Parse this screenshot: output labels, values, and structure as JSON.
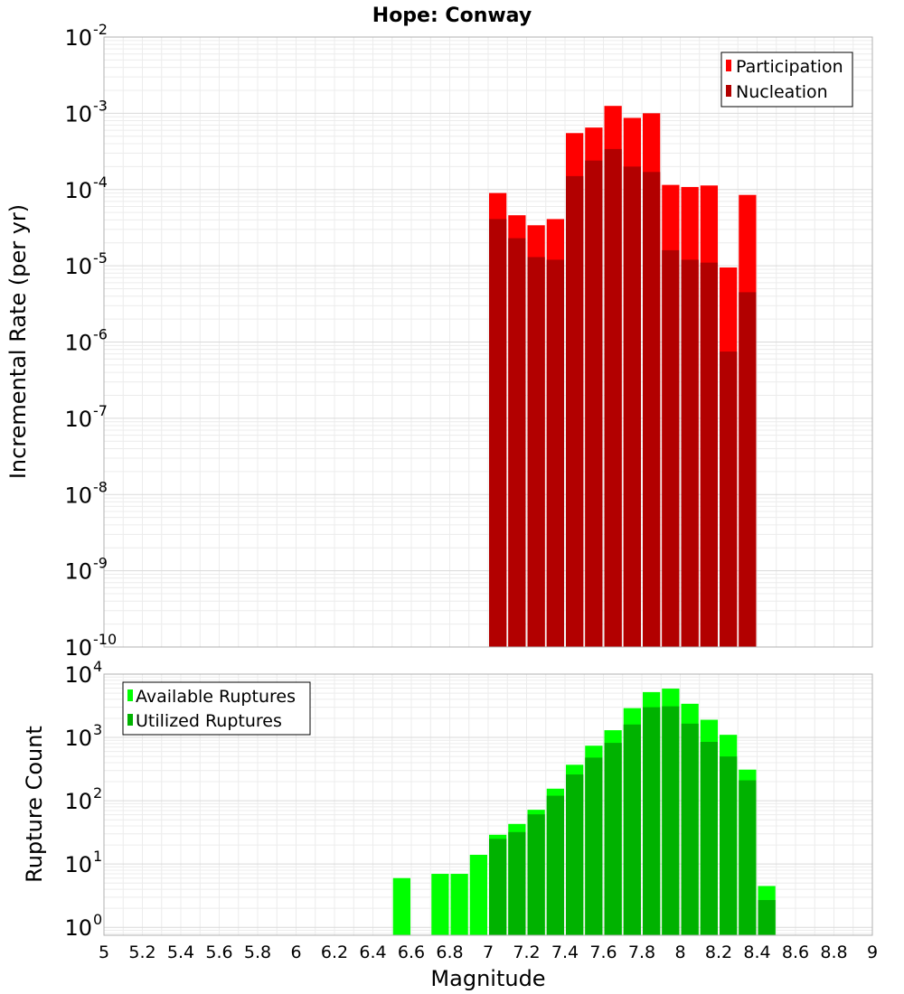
{
  "title": "Hope: Conway",
  "chart_data": [
    {
      "type": "bar",
      "title": "Hope: Conway",
      "xlabel": "Magnitude",
      "ylabel": "Incremental Rate (per yr)",
      "yscale": "log",
      "xlim": [
        5,
        9
      ],
      "ylim": [
        1e-10,
        0.01
      ],
      "grid": true,
      "legend_position": "top-right",
      "bin_width": 0.1,
      "y_ticks": [
        {
          "base": "10",
          "exp": "-10",
          "value": 1e-10
        },
        {
          "base": "10",
          "exp": "-9",
          "value": 1e-09
        },
        {
          "base": "10",
          "exp": "-8",
          "value": 1e-08
        },
        {
          "base": "10",
          "exp": "-7",
          "value": 1e-07
        },
        {
          "base": "10",
          "exp": "-6",
          "value": 1e-06
        },
        {
          "base": "10",
          "exp": "-5",
          "value": 1e-05
        },
        {
          "base": "10",
          "exp": "-4",
          "value": 0.0001
        },
        {
          "base": "10",
          "exp": "-3",
          "value": 0.001
        },
        {
          "base": "10",
          "exp": "-2",
          "value": 0.01
        }
      ],
      "x": [
        7.05,
        7.15,
        7.25,
        7.35,
        7.45,
        7.55,
        7.65,
        7.75,
        7.85,
        7.95,
        8.05,
        8.15,
        8.25,
        8.35
      ],
      "series": [
        {
          "name": "Participation",
          "color": "#ff0000",
          "values": [
            9e-05,
            4.6e-05,
            3.4e-05,
            4.1e-05,
            0.00055,
            0.00065,
            0.00125,
            0.00087,
            0.001,
            0.000115,
            0.000108,
            0.000113,
            9.5e-06,
            8.5e-05
          ]
        },
        {
          "name": "Nucleation",
          "color": "#b20000",
          "values": [
            4.1e-05,
            2.3e-05,
            1.3e-05,
            1.2e-05,
            0.00015,
            0.00024,
            0.00034,
            0.0002,
            0.00017,
            1.6e-05,
            1.2e-05,
            1.1e-05,
            7.5e-07,
            4.5e-06
          ]
        }
      ]
    },
    {
      "type": "bar",
      "xlabel": "Magnitude",
      "ylabel": "Rupture Count",
      "yscale": "log",
      "xlim": [
        5,
        9
      ],
      "ylim": [
        0.75,
        10000
      ],
      "grid": true,
      "legend_position": "top-left",
      "bin_width": 0.1,
      "y_ticks": [
        {
          "base": "10",
          "exp": "0",
          "value": 1
        },
        {
          "base": "10",
          "exp": "1",
          "value": 10
        },
        {
          "base": "10",
          "exp": "2",
          "value": 100
        },
        {
          "base": "10",
          "exp": "3",
          "value": 1000
        },
        {
          "base": "10",
          "exp": "4",
          "value": 10000
        }
      ],
      "x_ticks": [
        "5",
        "5.2",
        "5.4",
        "5.6",
        "5.8",
        "6",
        "6.2",
        "6.4",
        "6.6",
        "6.8",
        "7",
        "7.2",
        "7.4",
        "7.6",
        "7.8",
        "8",
        "8.2",
        "8.4",
        "8.6",
        "8.8",
        "9"
      ],
      "x": [
        6.55,
        6.75,
        6.85,
        6.95,
        7.05,
        7.15,
        7.25,
        7.35,
        7.45,
        7.55,
        7.65,
        7.75,
        7.85,
        7.95,
        8.05,
        8.15,
        8.25,
        8.35,
        8.45
      ],
      "series": [
        {
          "name": "Available Ruptures",
          "color": "#00ff00",
          "values": [
            6,
            7,
            7,
            14,
            29,
            43,
            72,
            155,
            370,
            740,
            1300,
            2900,
            5200,
            5900,
            3400,
            1900,
            1100,
            310,
            4.5
          ]
        },
        {
          "name": "Utilized Ruptures",
          "color": "#00b200",
          "values": [
            0,
            0,
            0,
            0,
            25,
            32,
            61,
            120,
            260,
            480,
            820,
            1600,
            3000,
            3100,
            1650,
            850,
            500,
            210,
            2.7
          ]
        }
      ]
    }
  ]
}
